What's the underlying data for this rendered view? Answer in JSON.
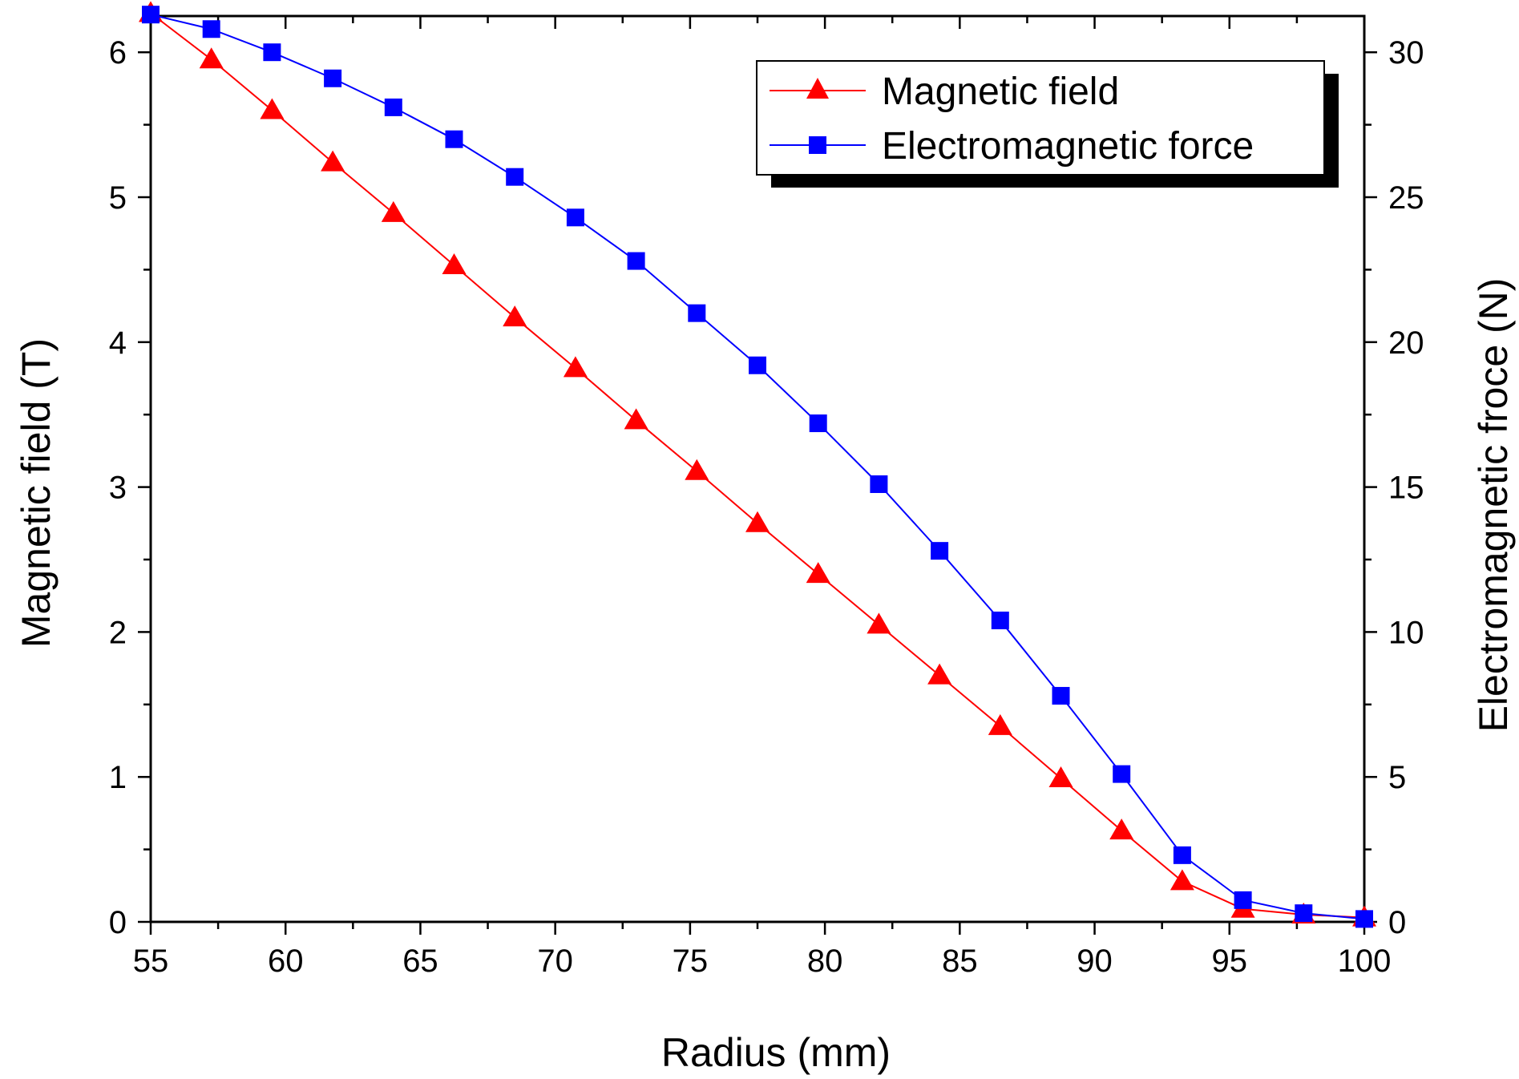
{
  "chart_data": {
    "type": "line",
    "title": "",
    "xlabel": "Radius (mm)",
    "ylabel": "Magnetic field (T)",
    "y2label": "Electromagnetic froce (N)",
    "xlim": [
      55,
      100
    ],
    "ylim": [
      0,
      6.25
    ],
    "y2lim": [
      0,
      31.25
    ],
    "x_ticks": [
      "55",
      "60",
      "65",
      "70",
      "75",
      "80",
      "85",
      "90",
      "95",
      "100"
    ],
    "y_ticks": [
      "0",
      "1",
      "2",
      "3",
      "4",
      "5",
      "6"
    ],
    "y2_ticks": [
      "0",
      "5",
      "10",
      "15",
      "20",
      "25",
      "30"
    ],
    "x": [
      55.0,
      57.25,
      59.5,
      61.75,
      64.0,
      66.25,
      68.5,
      70.75,
      73.0,
      75.25,
      77.5,
      79.75,
      82.0,
      84.25,
      86.5,
      88.75,
      91.0,
      93.25,
      95.5,
      97.75,
      100.0
    ],
    "series": [
      {
        "name": "Magnetic field",
        "axis": "left",
        "color": "#ff0000",
        "marker": "triangle",
        "values": [
          6.27,
          5.95,
          5.6,
          5.24,
          4.89,
          4.53,
          4.17,
          3.82,
          3.46,
          3.11,
          2.75,
          2.4,
          2.05,
          1.7,
          1.35,
          0.99,
          0.63,
          0.28,
          0.09,
          0.05,
          0.03
        ]
      },
      {
        "name": "Electromagnetic force",
        "axis": "right",
        "color": "#0000ff",
        "marker": "square",
        "values": [
          31.3,
          30.8,
          30.0,
          29.1,
          28.1,
          27.0,
          25.7,
          24.3,
          22.8,
          21.0,
          19.2,
          17.2,
          15.1,
          12.8,
          10.4,
          7.8,
          5.1,
          2.3,
          0.75,
          0.3,
          0.1
        ]
      }
    ],
    "legend": {
      "position": "top-right",
      "entries": [
        "Magnetic field",
        "Electromagnetic force"
      ]
    },
    "grid": false
  }
}
